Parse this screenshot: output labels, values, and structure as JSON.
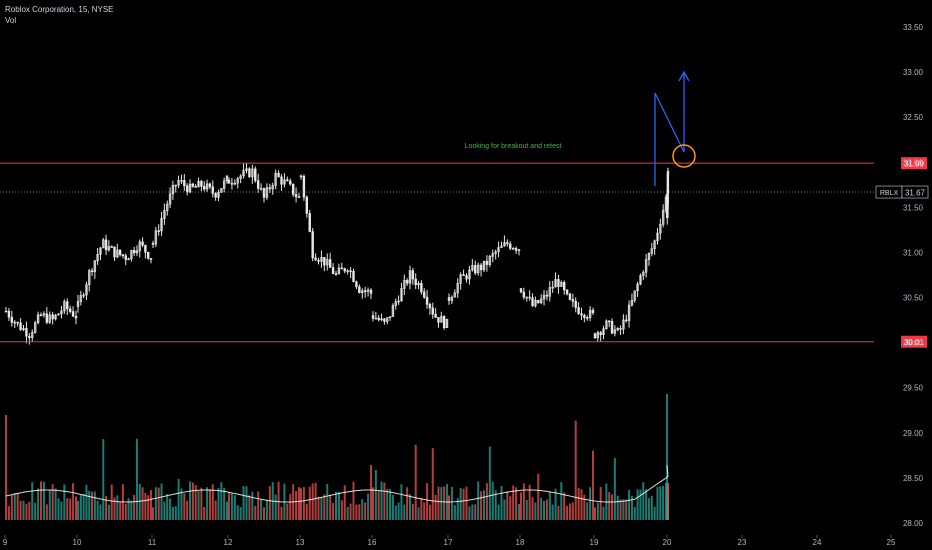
{
  "header": {
    "title": "Roblox Corporation, 15, NYSE",
    "indicator": "Vol"
  },
  "colors": {
    "background": "#000000",
    "up": "#e8e8e8",
    "down": "#e8e8e8",
    "vol_up": "#26a69a",
    "vol_down": "#ef5350",
    "level_line": "#f23645",
    "drawing": "#2962ff",
    "circle": "#ff9800",
    "annotation": "#4caf50",
    "axis_text": "#b2b5be",
    "vol_ma": "#ffffff"
  },
  "chart_data": {
    "type": "candlestick",
    "title": "Roblox Corporation, 15, NYSE",
    "y_axis": {
      "min": 28.0,
      "max": 33.5,
      "ticks": [
        "33.50",
        "33.00",
        "32.50",
        "32.00",
        "31.50",
        "31.00",
        "30.50",
        "30.00",
        "29.50",
        "29.00",
        "28.50",
        "28.00"
      ]
    },
    "x_axis": {
      "ticks": [
        "9",
        "10",
        "11",
        "12",
        "13",
        "16",
        "17",
        "18",
        "19",
        "20",
        "23",
        "24",
        "25"
      ]
    },
    "levels": [
      {
        "price": 31.99,
        "label": "31.99"
      },
      {
        "price": 30.01,
        "label": "30.01"
      }
    ],
    "last_price": {
      "symbol": "RBLX",
      "value": "31.67",
      "price": 31.67
    },
    "annotation": "Looking for breakout and retest",
    "price_path": [
      {
        "day": "9",
        "points": [
          30.35,
          30.2,
          30.1,
          30.3,
          30.25,
          30.4,
          30.3
        ]
      },
      {
        "day": "10",
        "points": [
          30.4,
          30.8,
          31.1,
          31.0,
          30.95,
          31.1,
          30.95
        ]
      },
      {
        "day": "11",
        "points": [
          31.1,
          31.5,
          31.8,
          31.7,
          31.75,
          31.65,
          31.8
        ]
      },
      {
        "day": "12",
        "points": [
          31.8,
          31.85,
          31.9,
          31.6,
          31.85,
          31.75,
          31.6
        ]
      },
      {
        "day": "13",
        "points": [
          31.85,
          31.0,
          30.9,
          30.75,
          30.85,
          30.6,
          30.55
        ]
      },
      {
        "day": "16",
        "points": [
          30.3,
          30.2,
          30.5,
          30.75,
          30.6,
          30.3,
          30.2
        ]
      },
      {
        "day": "17",
        "points": [
          30.5,
          30.7,
          30.8,
          30.85,
          31.0,
          31.1,
          31.05
        ]
      },
      {
        "day": "18",
        "points": [
          30.6,
          30.4,
          30.5,
          30.7,
          30.45,
          30.35,
          30.3
        ]
      },
      {
        "day": "19",
        "points": [
          30.1,
          30.2,
          30.1,
          30.4,
          30.8,
          31.1,
          31.6
        ]
      },
      {
        "day": "20",
        "points": [
          31.9,
          31.5,
          31.4,
          31.55,
          31.67
        ]
      }
    ]
  }
}
